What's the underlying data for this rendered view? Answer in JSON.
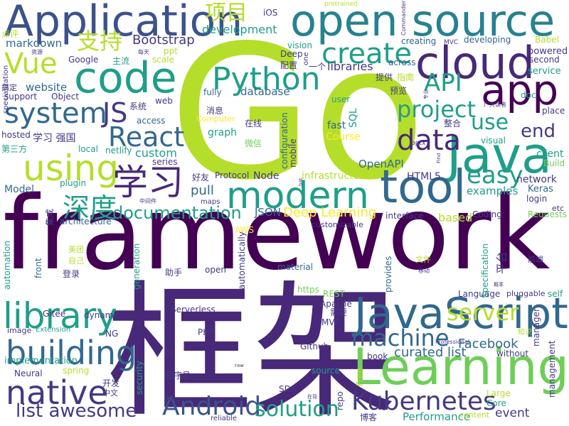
{
  "words": {
    "framework": "framework",
    "go": "Go",
    "kuangjia": "框架",
    "open_source": "open source",
    "application": "Application",
    "javascript": "JavaScript",
    "learning": "Learning",
    "java": "Java",
    "tool": "tool",
    "cloud": "cloud",
    "code": "code",
    "app": "app",
    "modern": "modern",
    "python": "Python",
    "library": "library",
    "native": "native",
    "building": "building",
    "kubernetes": "Kubernetes",
    "android": "Android",
    "solution": "solution",
    "list_awesome": "list awesome",
    "system": "system",
    "using": "using",
    "vue": "Vue",
    "react": "React",
    "create": "create",
    "data": "data",
    "project": "project",
    "xuexi": "学习",
    "shendu": "深度",
    "documentation": "documentation",
    "machine": "machine",
    "server": "server",
    "distributed": "distributed",
    "js": "JS",
    "api": "API",
    "easy": "easy",
    "use": "use",
    "end": "end",
    "xiangmu": "项目",
    "zhichi": "支持",
    "deep_learning": "Deep Learning",
    "curated_list": "curated list",
    "facebook": "Facebook",
    "bootstrap": "Bootstrap",
    "markdown": "markdown",
    "development": "development",
    "libraries": "libraries",
    "database": "database",
    "website": "website",
    "service": "service",
    "powered": "powered",
    "client": "client",
    "network": "network",
    "html5": "HTML5",
    "openapi": "OpenAPI",
    "infrastructure": "infrastructure",
    "custom": "custom",
    "pull": "pull",
    "json": "JSON",
    "model": "Model",
    "examples": "examples",
    "based": "based",
    "keras": "Keras",
    "event": "event",
    "performance": "Performance",
    "implementation": "implementation",
    "course": "Course",
    "fast": "fast",
    "graph": "graph",
    "node": "Node",
    "hosted": "hosted",
    "support": "support",
    "object": "Object",
    "google": "Google",
    "ios": "iOS",
    "scale": "scale",
    "ppt": "ppt",
    "vision": "vision",
    "creating": "creating",
    "developing": "developing",
    "second": "second",
    "babel": "Babel",
    "mvc": "MVC",
    "commander": "Commander",
    "pretrained": "pretrained",
    "dianping": "点评",
    "ziyuan": "资源",
    "meitian": "每天",
    "zhuliu": "主流",
    "peizhi": "配置",
    "yige": "一个",
    "tigong": "提供",
    "zhinan": "指南",
    "yulan": "预览",
    "gaoding": "搞定",
    "xitong": "系统",
    "web": "web",
    "access": "access",
    "fully": "fully",
    "computer": "Computer",
    "xiaoxi": "消息",
    "zaixian": "在线",
    "weixin": "微信",
    "zhenghe": "整合",
    "doc": "doc",
    "place": "place",
    "guangda_duzhe": "广大读者",
    "user": "user",
    "sql": "SQL",
    "visual": "visual",
    "pptx": "pptx",
    "xuexi_qiangguo": "学习 强国",
    "disanfang": "第三方",
    "local": "local",
    "netlify": "netlify",
    "series": "series",
    "configuration": "configuration",
    "mobile": "mobile",
    "build": "Build",
    "etc": "etc",
    "login": "login",
    "requests": "Requests",
    "coding": "Coding",
    "interface": "interface",
    "customizable": "customizable",
    "across": "across",
    "deep": "Deep",
    "one": "one",
    "plugin": "plugin",
    "zhongjianjian": "中间件",
    "maps": "maps",
    "protocol": "Protocol",
    "haoyou": "好友",
    "architecture": "architecture",
    "jicheng": "集成",
    "aws": "AWS",
    "front": "front",
    "automation": "automation",
    "meituan": "美团",
    "ziji": "自己",
    "denglu": "登录",
    "generation": "generation",
    "automatically": "automatically",
    "zhushou": "助手",
    "open": "open",
    "material": "material",
    "wenjian": "文件",
    "yidong": "移动",
    "pingtai": "平台",
    "qianduan": "前端",
    "https": "https",
    "rest": "REST",
    "provides": "provides",
    "xuyao": "需要",
    "apache": "Apache",
    "mvp": "MVP",
    "specification": "Specification",
    "language": "Language",
    "gailv": "概率",
    "pluggable": "pluggable",
    "self": "self",
    "manager": "manager",
    "serverless": "Serverless",
    "gitee": "Gitee",
    "dynamic": "dynamic",
    "image": "image",
    "extension": "Extension",
    "ng": "NG",
    "php": "PHP",
    "github": "Github",
    "zhishi": "知识",
    "professional": "Professional",
    "without": "without",
    "book": "book",
    "source": "source",
    "neural": "Neural",
    "spring": "spring",
    "free": "Free",
    "repo": "repo",
    "security": "security",
    "kaifa": "开发",
    "zhongwen": "中文",
    "chengxuyuan": "程序员",
    "sdk": "SDK",
    "zaibei": "在背",
    "large": "Large",
    "core": "Core",
    "content": "content",
    "bokke": "博客",
    "management": "management",
    "reliable": "reliable",
    "specialization": "specialization",
    "raw": "raw",
    "anquan": "安全",
    "duli": "独立",
    "find": "Find",
    "bat": "bat",
    "zhuanye": "专业"
  },
  "palette": {
    "purple": "#440154",
    "indigo": "#482878",
    "violet": "#443983",
    "blue": "#3b528b",
    "slate": "#31688e",
    "teal": "#26828e",
    "sea": "#1f9e89",
    "green": "#35b779",
    "lime": "#6ece58",
    "chartreuse": "#b5de2b",
    "yellow": "#fde725"
  }
}
